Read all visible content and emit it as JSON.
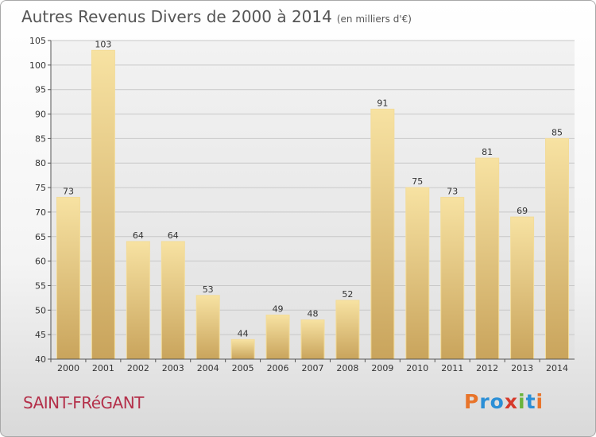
{
  "title": "Autres Revenus Divers de 2000 à 2014",
  "subtitle": "(en milliers d'€)",
  "commune": "SAINT-FRéGANT",
  "logo": {
    "letters": [
      "P",
      "r",
      "o",
      "x",
      "i",
      "t",
      "i"
    ],
    "colors": [
      "#e8742a",
      "#2b8fd6",
      "#2b8fd6",
      "#d63a2b",
      "#6ab43c",
      "#2b8fd6",
      "#e8742a"
    ]
  },
  "chart_data": {
    "type": "bar",
    "categories": [
      "2000",
      "2001",
      "2002",
      "2003",
      "2004",
      "2005",
      "2006",
      "2007",
      "2008",
      "2009",
      "2010",
      "2011",
      "2012",
      "2013",
      "2014"
    ],
    "values": [
      73,
      103,
      64,
      64,
      53,
      44,
      49,
      48,
      52,
      91,
      75,
      73,
      81,
      69,
      85
    ],
    "ylim": [
      40,
      105
    ],
    "yticks": [
      40,
      45,
      50,
      55,
      60,
      65,
      70,
      75,
      80,
      85,
      90,
      95,
      100,
      105
    ],
    "grid": true,
    "bar_color": "#e6c77a"
  }
}
